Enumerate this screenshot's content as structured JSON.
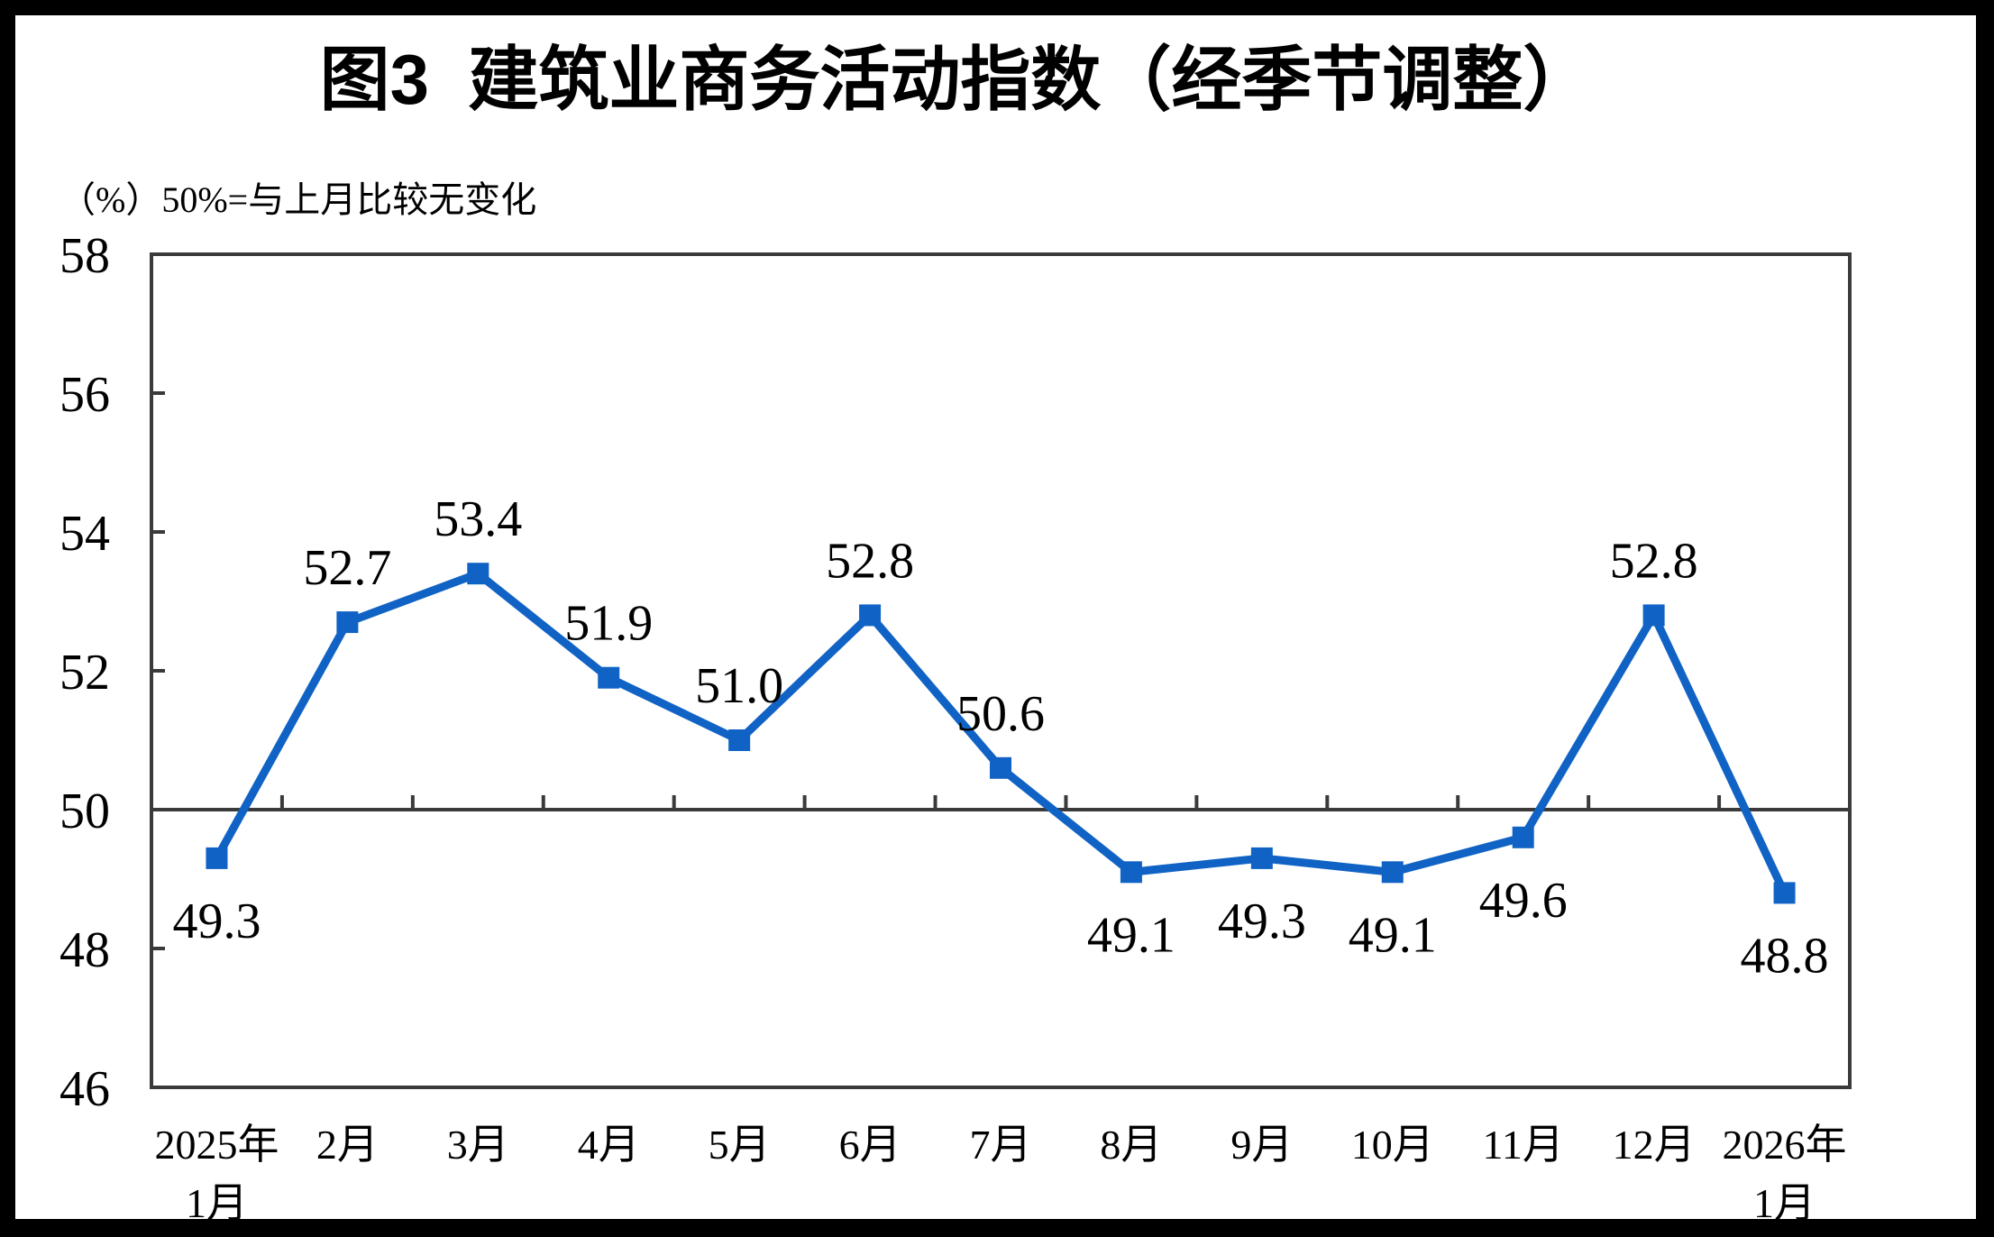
{
  "frame": {
    "background": "#ffffff",
    "border_color": "#000000"
  },
  "header": {
    "title": "图3  建筑业商务活动指数（经季节调整）",
    "unit_note": "（%）50%=与上月比较无变化"
  },
  "chart_data": {
    "type": "line",
    "title": "图3 建筑业商务活动指数（经季节调整）",
    "unit_note": "（%）50%=与上月比较无变化",
    "categories": [
      [
        "2025年",
        "1月"
      ],
      [
        "2月"
      ],
      [
        "3月"
      ],
      [
        "4月"
      ],
      [
        "5月"
      ],
      [
        "6月"
      ],
      [
        "7月"
      ],
      [
        "8月"
      ],
      [
        "9月"
      ],
      [
        "10月"
      ],
      [
        "11月"
      ],
      [
        "12月"
      ],
      [
        "2026年",
        "1月"
      ]
    ],
    "series": [
      {
        "name": "建筑业商务活动指数（经季节调整）",
        "values": [
          49.3,
          52.7,
          53.4,
          51.9,
          51.0,
          52.8,
          50.6,
          49.1,
          49.3,
          49.1,
          49.6,
          52.8,
          48.8
        ],
        "labels": [
          "49.3",
          "52.7",
          "53.4",
          "51.9",
          "51.0",
          "52.8",
          "50.6",
          "49.1",
          "49.3",
          "49.1",
          "49.6",
          "52.8",
          "48.8"
        ]
      }
    ],
    "ylim": [
      46,
      58
    ],
    "yticks": [
      46,
      48,
      50,
      52,
      54,
      56,
      58
    ],
    "reference_line": 50,
    "grid": false,
    "legend_position": "none",
    "marker": "square",
    "colors": {
      "line": "#1063C5",
      "axis": "#3A3A3A",
      "text": "#000000"
    }
  }
}
